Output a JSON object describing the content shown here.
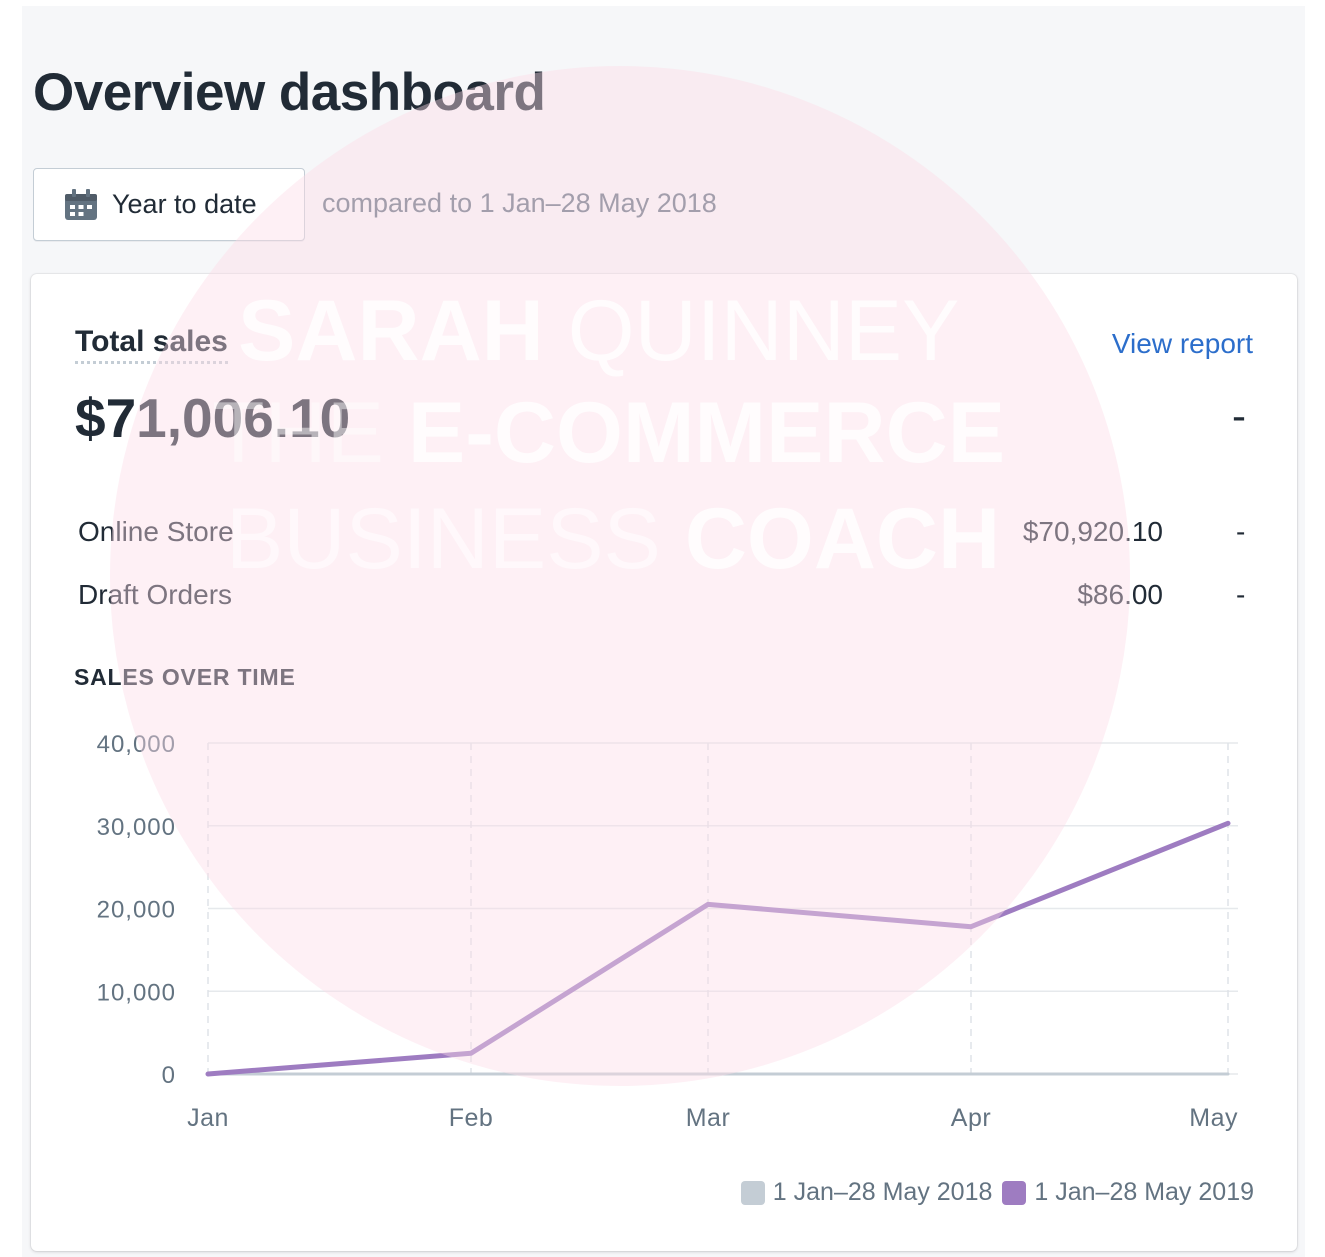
{
  "page": {
    "title": "Overview dashboard",
    "date_button_label": "Year to date",
    "compared_text": "compared to 1 Jan–28 May 2018"
  },
  "watermark": {
    "line1_bold": "SARAH",
    "line1_light": "QUINNEY",
    "line2_light": "THE",
    "line2_bold": "E-COMMERCE",
    "line3_light": "BUSINESS",
    "line3_bold": "COACH"
  },
  "card": {
    "title": "Total sales",
    "view_report": "View report",
    "total": "$71,006.10",
    "total_change": "-",
    "rows": [
      {
        "label": "Online Store",
        "value": "$70,920.10",
        "change": "-"
      },
      {
        "label": "Draft Orders",
        "value": "$86.00",
        "change": "-"
      }
    ],
    "section_heading": "SALES OVER TIME"
  },
  "colors": {
    "series_2019": "#9e7cc1",
    "series_2018": "#c4cdd5",
    "link": "#2c6ecb"
  },
  "chart_data": {
    "type": "line",
    "x": [
      "Jan",
      "Feb",
      "Mar",
      "Apr",
      "May"
    ],
    "yticks": [
      "40,000",
      "30,000",
      "20,000",
      "10,000",
      "0"
    ],
    "ylim": [
      0,
      40000
    ],
    "grid": true,
    "legend_position": "bottom-right",
    "series": [
      {
        "name": "1 Jan–28 May 2018",
        "values": [
          0,
          0,
          0,
          0,
          0
        ],
        "color": "#c4cdd5"
      },
      {
        "name": "1 Jan–28 May 2019",
        "values": [
          0,
          2500,
          20500,
          17800,
          30300
        ],
        "color": "#9e7cc1"
      }
    ]
  }
}
